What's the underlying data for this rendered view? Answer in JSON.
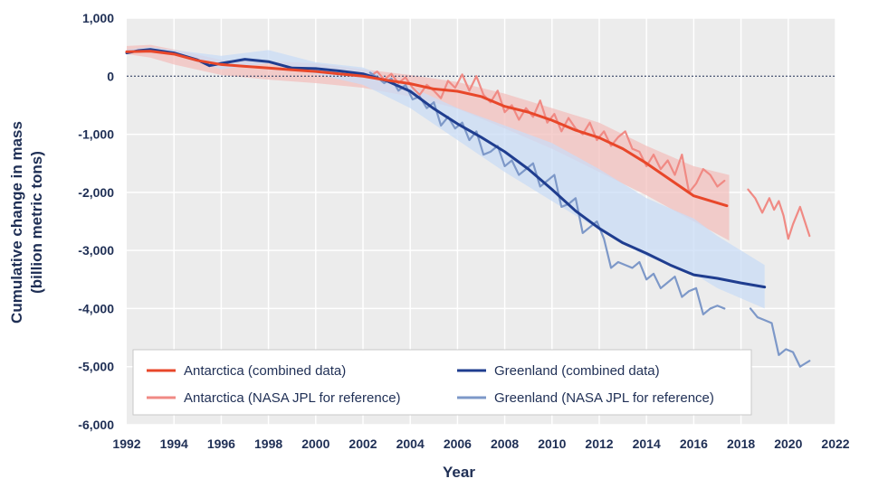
{
  "chart_data": {
    "type": "line",
    "title": "",
    "xlabel": "Year",
    "ylabel": [
      "Cumulative change in mass",
      "(billion metric tons)"
    ],
    "xlim": [
      1992,
      2022
    ],
    "ylim": [
      -6000,
      1000
    ],
    "x_ticks": [
      "1992",
      "1994",
      "1996",
      "1998",
      "2000",
      "2002",
      "2004",
      "2006",
      "2008",
      "2010",
      "2012",
      "2014",
      "2016",
      "2018",
      "2020",
      "2022"
    ],
    "y_ticks": [
      "1,000",
      "0",
      "-1,000",
      "-2,000",
      "-3,000",
      "-4,000",
      "-5,000",
      "-6,000"
    ],
    "colors": {
      "antarctica_combined": "#e8472a",
      "antarctica_jpl": "#f08a84",
      "antarctica_band": "#f3c0bd",
      "greenland_combined": "#1f3d8f",
      "greenland_jpl": "#7d98c8",
      "greenland_band": "#c9dcf5",
      "text": "#1f2f55",
      "plot_bg": "#ececec"
    },
    "legend": [
      {
        "key": "antarctica_combined",
        "label": "Antarctica (combined data)"
      },
      {
        "key": "greenland_combined",
        "label": "Greenland (combined data)"
      },
      {
        "key": "antarctica_jpl",
        "label": "Antarctica (NASA JPL for reference)"
      },
      {
        "key": "greenland_jpl",
        "label": "Greenland (NASA JPL for reference)"
      }
    ],
    "series": [
      {
        "name": "Antarctica uncertainty range",
        "kind": "band",
        "color_key": "antarctica_band",
        "x": [
          1992,
          1993,
          1994,
          1996,
          1998,
          2000,
          2002,
          2004,
          2006,
          2008,
          2010,
          2012,
          2014,
          2016,
          2017.5
        ],
        "upper": [
          520,
          540,
          460,
          280,
          260,
          220,
          120,
          20,
          -100,
          -300,
          -550,
          -800,
          -1200,
          -1550,
          -1700
        ],
        "lower": [
          380,
          320,
          200,
          20,
          -60,
          -120,
          -200,
          -350,
          -560,
          -900,
          -1250,
          -1650,
          -2050,
          -2500,
          -2830
        ]
      },
      {
        "name": "Greenland uncertainty range",
        "kind": "band",
        "color_key": "greenland_band",
        "x": [
          1992,
          1993,
          1994,
          1996,
          1998,
          2000,
          2002,
          2004,
          2006,
          2008,
          2010,
          2012,
          2014,
          2016,
          2017,
          2019
        ],
        "upper": [
          460,
          500,
          450,
          350,
          450,
          240,
          150,
          -180,
          -550,
          -850,
          -1150,
          -1600,
          -2100,
          -2450,
          -2750,
          -3250
        ],
        "lower": [
          400,
          440,
          360,
          120,
          220,
          40,
          -150,
          -550,
          -1100,
          -1650,
          -2150,
          -2650,
          -3100,
          -3400,
          -3650,
          -4000
        ]
      },
      {
        "name": "Antarctica (NASA JPL for reference)",
        "kind": "line",
        "color_key": "antarctica_jpl",
        "segments": [
          {
            "x": [
              2002.3,
              2002.6,
              2002.9,
              2003.2,
              2003.5,
              2003.8,
              2004.1,
              2004.4,
              2004.7,
              2005.0,
              2005.3,
              2005.6,
              2005.9,
              2006.2,
              2006.5,
              2006.8,
              2007.1,
              2007.4,
              2007.7,
              2008.0,
              2008.3,
              2008.6,
              2008.9,
              2009.2,
              2009.5,
              2009.8,
              2010.1,
              2010.4,
              2010.7,
              2011.0,
              2011.3,
              2011.6,
              2011.9,
              2012.2,
              2012.5,
              2012.8,
              2013.1,
              2013.4,
              2013.7,
              2014.0,
              2014.3,
              2014.6,
              2014.9,
              2015.2,
              2015.5,
              2015.8,
              2016.1,
              2016.4,
              2016.7,
              2017.0,
              2017.3
            ],
            "y": [
              0,
              80,
              -60,
              40,
              -120,
              -20,
              -200,
              -320,
              -150,
              -250,
              -380,
              -80,
              -200,
              30,
              -250,
              0,
              -320,
              -450,
              -250,
              -620,
              -500,
              -750,
              -550,
              -700,
              -420,
              -800,
              -650,
              -950,
              -720,
              -900,
              -1000,
              -800,
              -1100,
              -950,
              -1200,
              -1050,
              -950,
              -1250,
              -1300,
              -1550,
              -1350,
              -1600,
              -1450,
              -1700,
              -1350,
              -2000,
              -1850,
              -1600,
              -1700,
              -1900,
              -1800
            ]
          },
          {
            "x": [
              2018.3,
              2018.6,
              2018.9,
              2019.2,
              2019.4,
              2019.6,
              2019.8,
              2020.0,
              2020.2,
              2020.5,
              2020.7,
              2020.9
            ],
            "y": [
              -1950,
              -2100,
              -2350,
              -2100,
              -2300,
              -2150,
              -2400,
              -2800,
              -2550,
              -2250,
              -2500,
              -2750
            ]
          }
        ]
      },
      {
        "name": "Greenland (NASA JPL for reference)",
        "kind": "line",
        "color_key": "greenland_jpl",
        "segments": [
          {
            "x": [
              2002.3,
              2002.6,
              2002.9,
              2003.2,
              2003.5,
              2003.8,
              2004.1,
              2004.4,
              2004.7,
              2005.0,
              2005.3,
              2005.6,
              2005.9,
              2006.2,
              2006.5,
              2006.8,
              2007.1,
              2007.4,
              2007.7,
              2008.0,
              2008.3,
              2008.6,
              2008.9,
              2009.2,
              2009.5,
              2009.8,
              2010.1,
              2010.4,
              2010.7,
              2011.0,
              2011.3,
              2011.6,
              2011.9,
              2012.2,
              2012.5,
              2012.8,
              2013.1,
              2013.4,
              2013.7,
              2014.0,
              2014.3,
              2014.6,
              2014.9,
              2015.2,
              2015.5,
              2015.8,
              2016.1,
              2016.4,
              2016.7,
              2017.0,
              2017.3
            ],
            "y": [
              60,
              -20,
              -120,
              -40,
              -250,
              -150,
              -400,
              -350,
              -550,
              -450,
              -850,
              -700,
              -900,
              -800,
              -1100,
              -950,
              -1350,
              -1300,
              -1200,
              -1550,
              -1450,
              -1700,
              -1600,
              -1500,
              -1900,
              -1800,
              -1700,
              -2250,
              -2200,
              -2100,
              -2700,
              -2600,
              -2500,
              -2800,
              -3300,
              -3200,
              -3250,
              -3300,
              -3200,
              -3500,
              -3400,
              -3650,
              -3550,
              -3450,
              -3800,
              -3700,
              -3650,
              -4100,
              -4000,
              -3950,
              -4000
            ]
          },
          {
            "x": [
              2018.4,
              2018.7,
              2019.0,
              2019.3,
              2019.6,
              2019.9,
              2020.2,
              2020.5,
              2020.7,
              2020.9
            ],
            "y": [
              -4000,
              -4150,
              -4200,
              -4250,
              -4800,
              -4700,
              -4750,
              -5000,
              -4950,
              -4900
            ]
          }
        ]
      },
      {
        "name": "Greenland (combined data)",
        "kind": "line",
        "color_key": "greenland_combined",
        "segments": [
          {
            "x": [
              1992,
              1992.5,
              1993,
              1994,
              1995,
              1995.5,
              1996,
              1997,
              1998,
              1999,
              2000,
              2001,
              2002,
              2003,
              2004,
              2005,
              2006,
              2007,
              2008,
              2009,
              2010,
              2011,
              2012,
              2013,
              2014,
              2015,
              2016,
              2017,
              2018,
              2019
            ],
            "y": [
              400,
              440,
              460,
              400,
              280,
              180,
              220,
              290,
              250,
              140,
              130,
              90,
              40,
              -80,
              -260,
              -560,
              -820,
              -1050,
              -1300,
              -1600,
              -1950,
              -2320,
              -2620,
              -2870,
              -3050,
              -3250,
              -3420,
              -3480,
              -3560,
              -3630
            ]
          }
        ]
      },
      {
        "name": "Antarctica (combined data)",
        "kind": "line",
        "color_key": "antarctica_combined",
        "segments": [
          {
            "x": [
              1992,
              1993,
              1994,
              1995,
              1996,
              1997,
              1998,
              1999,
              2000,
              2001,
              2002,
              2003,
              2004,
              2005,
              2006,
              2007,
              2008,
              2009,
              2010,
              2011,
              2012,
              2013,
              2014,
              2015,
              2016,
              2017.4
            ],
            "y": [
              420,
              430,
              380,
              270,
              200,
              170,
              140,
              110,
              80,
              40,
              0,
              -70,
              -130,
              -220,
              -260,
              -350,
              -520,
              -620,
              -760,
              -930,
              -1060,
              -1250,
              -1500,
              -1780,
              -2060,
              -2230
            ]
          }
        ]
      }
    ]
  }
}
